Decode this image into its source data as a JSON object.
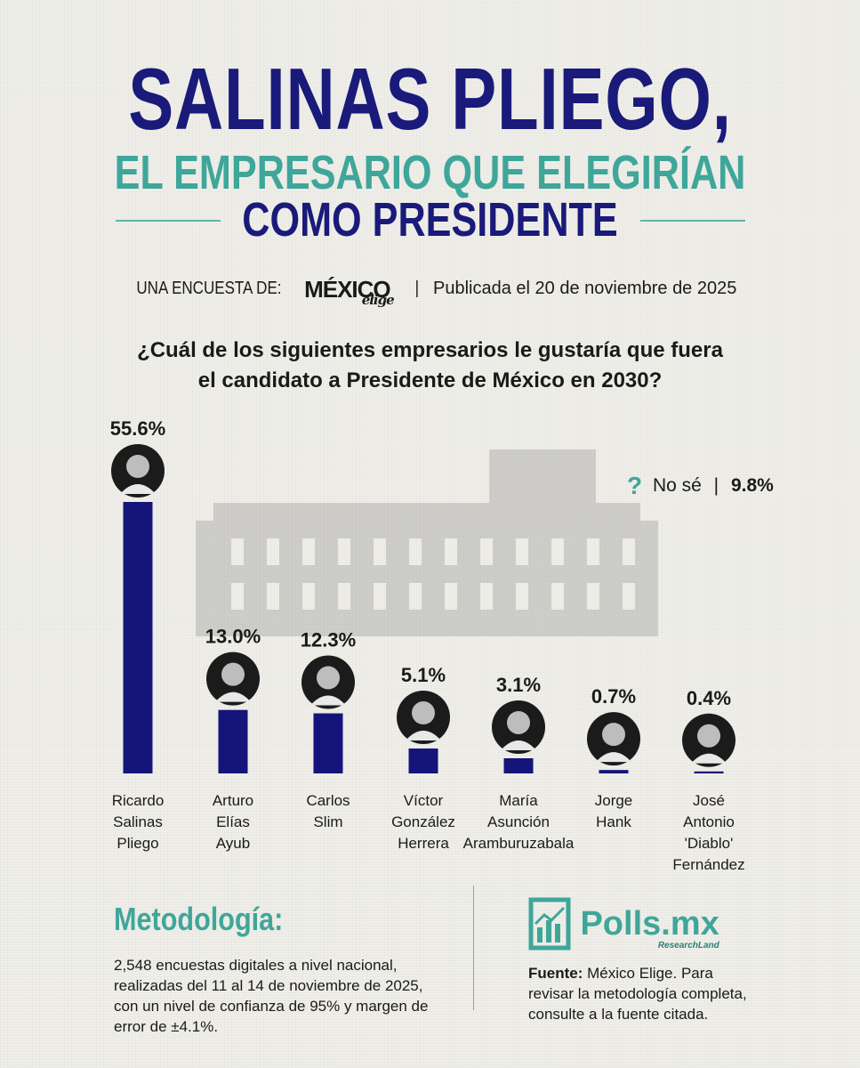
{
  "title": {
    "line1": "SALINAS PLIEGO,",
    "line2": "EL EMPRESARIO QUE ELEGIRÍAN",
    "line3": "COMO PRESIDENTE"
  },
  "byline": {
    "label": "UNA ENCUESTA DE:",
    "logo": "MÉXICO",
    "logo_sub": "elige",
    "separator": "|",
    "published": "Publicada el 20 de noviembre de 2025"
  },
  "colors": {
    "navy": "#1a1a7a",
    "teal": "#3fa69a",
    "bar": "#14147a"
  },
  "no_se": {
    "icon": "?",
    "label": "No sé",
    "separator": "|",
    "value": "9.8%"
  },
  "chart_data": {
    "type": "bar",
    "title": "¿Cuál de los siguientes empresarios le gustaría que fuera el candidato a Presidente de México en 2030?",
    "title_lines": [
      "¿Cuál de los siguientes empresarios le gustaría que fuera",
      "el candidato a Presidente de México en 2030?"
    ],
    "categories": [
      [
        "Ricardo",
        "Salinas",
        "Pliego"
      ],
      [
        "Arturo",
        "Elías",
        "Ayub"
      ],
      [
        "Carlos",
        "Slim"
      ],
      [
        "Víctor",
        "González",
        "Herrera"
      ],
      [
        "María",
        "Asunción",
        "Aramburuzabala"
      ],
      [
        "Jorge",
        "Hank"
      ],
      [
        "José",
        "Antonio",
        "'Diablo'",
        "Fernández"
      ]
    ],
    "values": [
      55.6,
      13.0,
      12.3,
      5.1,
      3.1,
      0.7,
      0.4
    ],
    "value_labels": [
      "55.6%",
      "13.0%",
      "12.3%",
      "5.1%",
      "3.1%",
      "0.7%",
      "0.4%"
    ],
    "ylim": [
      0,
      55.6
    ],
    "grid": false,
    "legend": "none"
  },
  "methodology": {
    "title": "Metodología:",
    "text": "2,548 encuestas digitales a nivel nacional, realizadas del 11 al 14 de noviembre de 2025, con un nivel de confianza de 95% y margen de error de ±4.1%."
  },
  "source": {
    "brand": "Polls.mx",
    "brand_tag": "ResearchLand",
    "label": "Fuente:",
    "text": "México Elige. Para revisar la metodología completa, consulte a la fuente citada."
  }
}
